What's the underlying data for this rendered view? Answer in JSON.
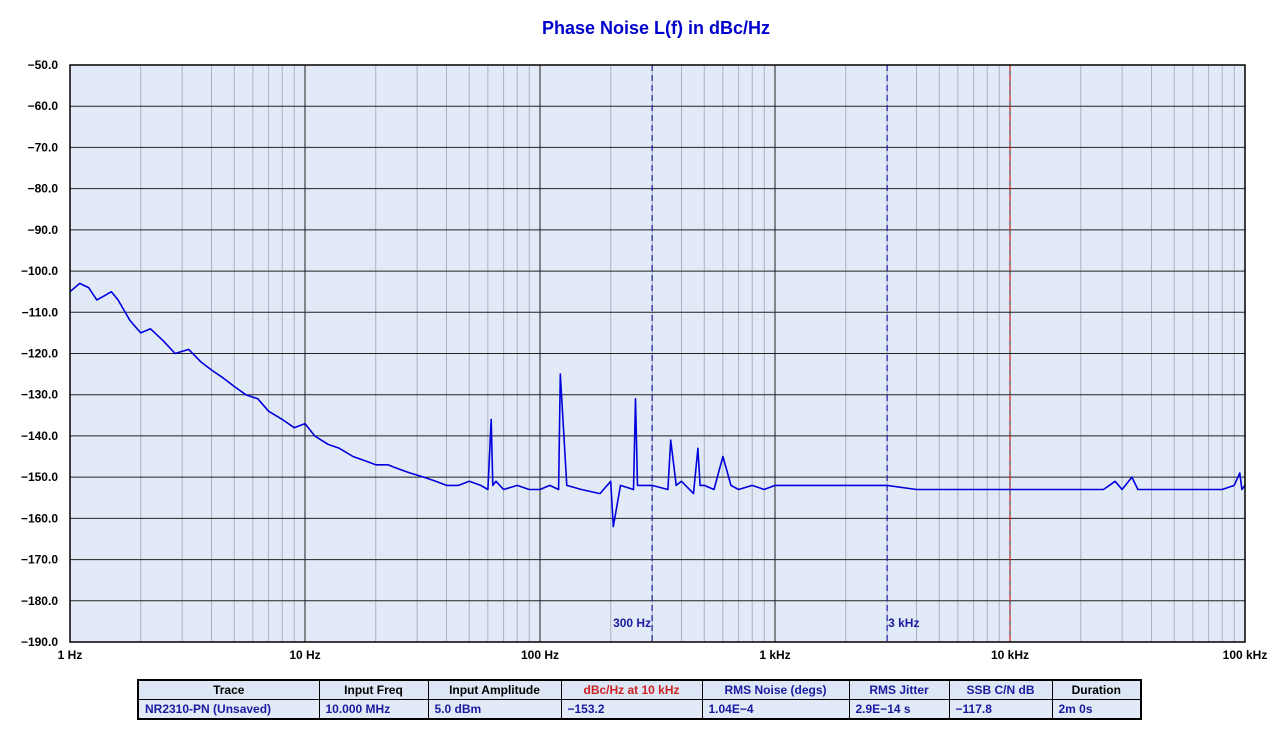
{
  "chart_data": {
    "type": "line",
    "title": "Phase Noise L(f) in dBc/Hz",
    "xscale": "log",
    "xlim": [
      1,
      100000
    ],
    "ylim": [
      -190,
      -50
    ],
    "y_ticks": [
      "−50.0",
      "−60.0",
      "−70.0",
      "−80.0",
      "−90.0",
      "−100.0",
      "−110.0",
      "−120.0",
      "−130.0",
      "−140.0",
      "−150.0",
      "−160.0",
      "−170.0",
      "−180.0",
      "−190.0"
    ],
    "x_ticks": [
      {
        "value": 1,
        "label": "1 Hz"
      },
      {
        "value": 10,
        "label": "10 Hz"
      },
      {
        "value": 100,
        "label": "100 Hz"
      },
      {
        "value": 1000,
        "label": "1 kHz"
      },
      {
        "value": 10000,
        "label": "10 kHz"
      },
      {
        "value": 100000,
        "label": "100 kHz"
      }
    ],
    "grid": true,
    "markers": [
      {
        "x": 300,
        "label": "300 Hz",
        "color": "#1a1aa0"
      },
      {
        "x": 3000,
        "label": "3 kHz",
        "color": "#1a1aa0"
      },
      {
        "x": 10000,
        "label": "",
        "color": "#cc2222"
      }
    ],
    "series": [
      {
        "color": "#0000dd",
        "x": [
          1,
          1.1,
          1.2,
          1.3,
          1.4,
          1.5,
          1.6,
          1.8,
          2.0,
          2.2,
          2.5,
          2.8,
          3.2,
          3.6,
          4.0,
          4.5,
          5,
          5.6,
          6.3,
          7,
          8,
          9,
          10,
          11,
          12.5,
          14,
          16,
          18,
          20,
          22.5,
          25,
          28,
          32,
          36,
          40,
          45,
          50,
          56,
          60,
          62,
          63,
          65,
          70,
          80,
          90,
          100,
          110,
          120,
          122,
          130,
          150,
          180,
          200,
          205,
          220,
          250,
          255,
          260,
          280,
          300,
          350,
          360,
          380,
          400,
          450,
          470,
          480,
          500,
          550,
          600,
          650,
          700,
          800,
          900,
          1000,
          1200,
          1500,
          2000,
          2500,
          3000,
          4000,
          5000,
          6000,
          8000,
          10000,
          15000,
          20000,
          25000,
          28000,
          30000,
          33000,
          35000,
          40000,
          50000,
          60000,
          70000,
          80000,
          90000,
          95000,
          97000,
          100000
        ],
        "y": [
          -105,
          -103,
          -104,
          -107,
          -106,
          -105,
          -107,
          -112,
          -115,
          -114,
          -117,
          -120,
          -119,
          -122,
          -124,
          -126,
          -128,
          -130,
          -131,
          -134,
          -136,
          -138,
          -137,
          -140,
          -142,
          -143,
          -145,
          -146,
          -147,
          -147,
          -148,
          -149,
          -150,
          -151,
          -152,
          -152,
          -151,
          -152,
          -153,
          -136,
          -152,
          -151,
          -153,
          -152,
          -153,
          -153,
          -152,
          -153,
          -125,
          -152,
          -153,
          -154,
          -151,
          -162,
          -152,
          -153,
          -131,
          -152,
          -152,
          -152,
          -153,
          -141,
          -152,
          -151,
          -154,
          -143,
          -152,
          -152,
          -153,
          -145,
          -152,
          -153,
          -152,
          -153,
          -152,
          -152,
          -152,
          -152,
          -152,
          -152,
          -153,
          -153,
          -153,
          -153,
          -153,
          -153,
          -153,
          -153,
          -151,
          -153,
          -150,
          -153,
          -153,
          -153,
          -153,
          -153,
          -153,
          -152,
          -149,
          -153,
          -152
        ]
      }
    ]
  },
  "table": {
    "headers": [
      {
        "text": "Trace",
        "color": "#000000"
      },
      {
        "text": "Input Freq",
        "color": "#000000"
      },
      {
        "text": "Input Amplitude",
        "color": "#000000"
      },
      {
        "text": "dBc/Hz at 10 kHz",
        "color": "#cc2222"
      },
      {
        "text": "RMS Noise (degs)",
        "color": "#1a1aa0"
      },
      {
        "text": "RMS Jitter",
        "color": "#1a1aa0"
      },
      {
        "text": "SSB C/N dB",
        "color": "#1a1aa0"
      },
      {
        "text": "Duration",
        "color": "#000000"
      }
    ],
    "values": [
      "NR2310-PN  (Unsaved)",
      "10.000 MHz",
      "5.0 dBm",
      "−153.2",
      "1.04E−4",
      "2.9E−14 s",
      "−117.8",
      "2m 0s"
    ]
  }
}
